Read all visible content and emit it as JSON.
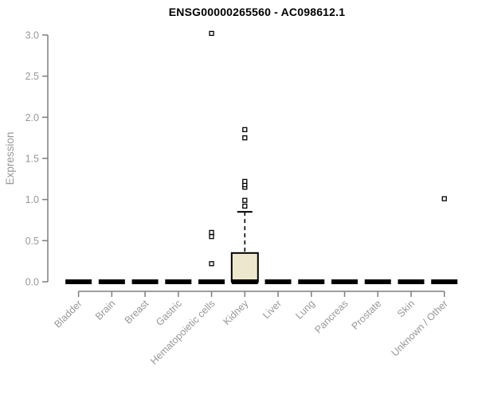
{
  "chart_data": {
    "type": "boxplot",
    "title": "ENSG00000265560 - AC098612.1",
    "ylabel": "Expression",
    "xlabel": "",
    "ylim": [
      0.0,
      3.0
    ],
    "yticks": [
      "0.0",
      "0.5",
      "1.0",
      "1.5",
      "2.0",
      "2.5",
      "3.0"
    ],
    "grid": false,
    "legend": null,
    "categories": [
      "Bladder",
      "Brain",
      "Breast",
      "Gastric",
      "Hematopoietic cells",
      "Kidney",
      "Liver",
      "Lung",
      "Pancreas",
      "Prostate",
      "Skin",
      "Unknown / Other"
    ],
    "boxes": [
      {
        "category": "Bladder",
        "whisker_low": 0,
        "q1": 0,
        "median": 0,
        "q3": 0,
        "whisker_high": 0,
        "outliers": []
      },
      {
        "category": "Brain",
        "whisker_low": 0,
        "q1": 0,
        "median": 0,
        "q3": 0,
        "whisker_high": 0,
        "outliers": []
      },
      {
        "category": "Breast",
        "whisker_low": 0,
        "q1": 0,
        "median": 0,
        "q3": 0,
        "whisker_high": 0,
        "outliers": []
      },
      {
        "category": "Gastric",
        "whisker_low": 0,
        "q1": 0,
        "median": 0,
        "q3": 0,
        "whisker_high": 0,
        "outliers": []
      },
      {
        "category": "Hematopoietic cells",
        "whisker_low": 0,
        "q1": 0,
        "median": 0,
        "q3": 0,
        "whisker_high": 0,
        "outliers": [
          0.22,
          0.55,
          0.6,
          3.02
        ]
      },
      {
        "category": "Kidney",
        "whisker_low": 0,
        "q1": 0,
        "median": 0,
        "q3": 0.35,
        "whisker_high": 0.85,
        "outliers": [
          0.92,
          0.99,
          1.15,
          1.18,
          1.22,
          1.75,
          1.85
        ]
      },
      {
        "category": "Liver",
        "whisker_low": 0,
        "q1": 0,
        "median": 0,
        "q3": 0,
        "whisker_high": 0,
        "outliers": []
      },
      {
        "category": "Lung",
        "whisker_low": 0,
        "q1": 0,
        "median": 0,
        "q3": 0,
        "whisker_high": 0,
        "outliers": []
      },
      {
        "category": "Pancreas",
        "whisker_low": 0,
        "q1": 0,
        "median": 0,
        "q3": 0,
        "whisker_high": 0,
        "outliers": []
      },
      {
        "category": "Prostate",
        "whisker_low": 0,
        "q1": 0,
        "median": 0,
        "q3": 0,
        "whisker_high": 0,
        "outliers": []
      },
      {
        "category": "Skin",
        "whisker_low": 0,
        "q1": 0,
        "median": 0,
        "q3": 0,
        "whisker_high": 0,
        "outliers": []
      },
      {
        "category": "Unknown / Other",
        "whisker_low": 0,
        "q1": 0,
        "median": 0,
        "q3": 0,
        "whisker_high": 0,
        "outliers": [
          1.01
        ]
      }
    ],
    "colors": {
      "box_fill": "#EDE8CD",
      "box_stroke": "#000000",
      "axis_line": "#7E7E7E",
      "axis_text": "#979797",
      "title_text": "#000000",
      "background": "#FFFFFF"
    }
  }
}
